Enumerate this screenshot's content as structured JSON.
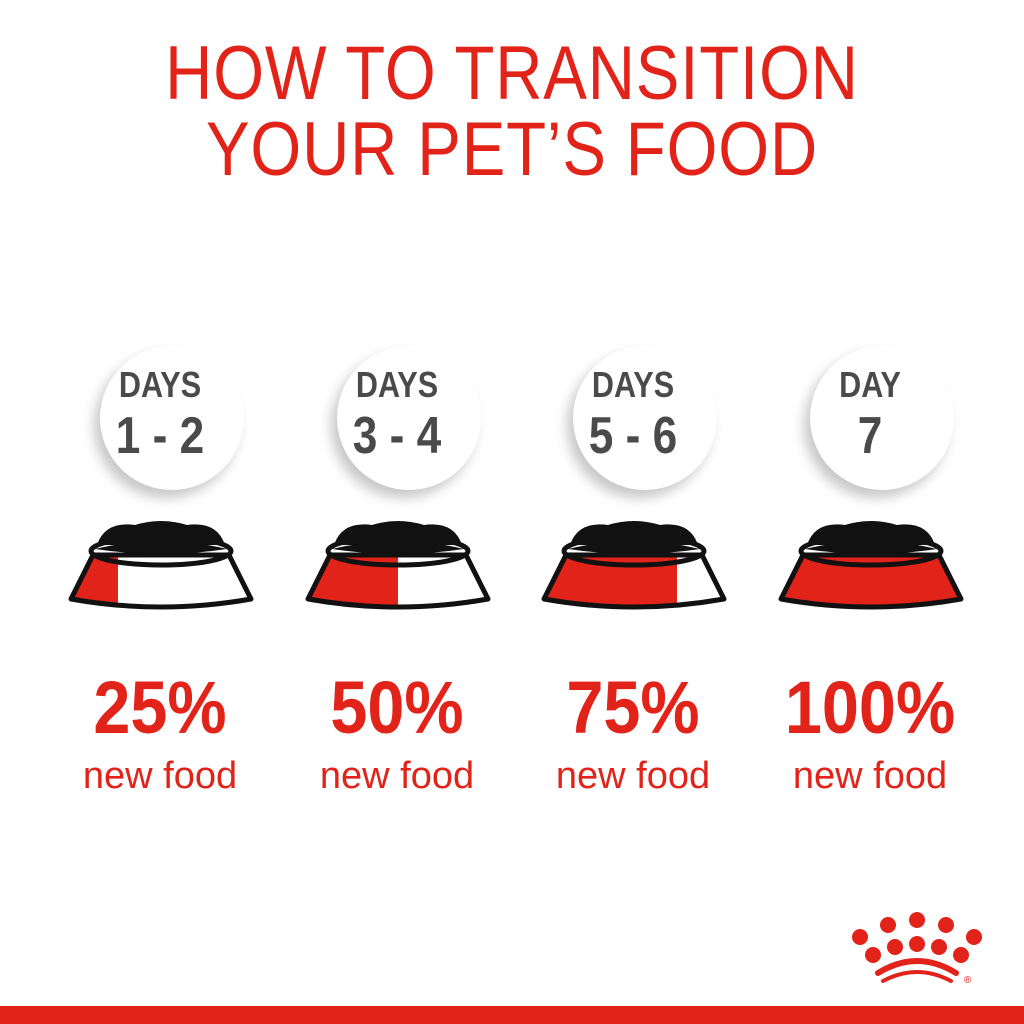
{
  "title": {
    "line1": "HOW TO TRANSITION",
    "line2": "YOUR PET’S FOOD"
  },
  "colors": {
    "accent": "#e2231a",
    "text_gray": "#4a4a4a",
    "kibble": "#111111"
  },
  "steps": [
    {
      "label": "DAYS",
      "range": "1 - 2",
      "percent": "25%",
      "caption": "new food",
      "new_food_fraction": 0.25
    },
    {
      "label": "DAYS",
      "range": "3 - 4",
      "percent": "50%",
      "caption": "new food",
      "new_food_fraction": 0.5
    },
    {
      "label": "DAYS",
      "range": "5 - 6",
      "percent": "75%",
      "caption": "new food",
      "new_food_fraction": 0.75
    },
    {
      "label": "DAY",
      "range": "7",
      "percent": "100%",
      "caption": "new food",
      "new_food_fraction": 1.0
    }
  ],
  "logo": {
    "name": "crown-logo",
    "mark": "®"
  }
}
